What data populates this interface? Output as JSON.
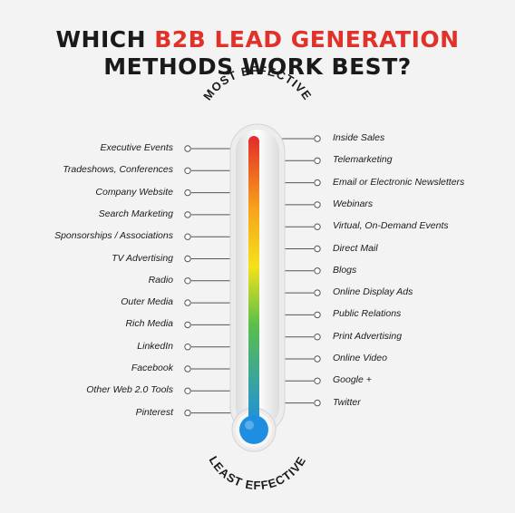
{
  "title": {
    "line1_prefix": "WHICH ",
    "line1_accent": "B2B LEAD GENERATION",
    "line2": "METHODS WORK BEST?"
  },
  "scale": {
    "top_label": "MOST EFFECTIVE",
    "bottom_label": "LEAST EFFECTIVE"
  },
  "left_methods": [
    "Executive Events",
    "Tradeshows, Conferences",
    "Company Website",
    "Search Marketing",
    "Sponsorships / Associations",
    "TV Advertising",
    "Radio",
    "Outer Media",
    "Rich Media",
    "LinkedIn",
    "Facebook",
    "Other Web 2.0 Tools",
    "Pinterest"
  ],
  "right_methods": [
    "Inside Sales",
    "Telemarketing",
    "Email or Electronic Newsletters",
    "Webinars",
    "Virtual, On-Demand Events",
    "Direct Mail",
    "Blogs",
    "Online Display Ads",
    "Public Relations",
    "Print Advertising",
    "Online Video",
    "Google +",
    "Twitter"
  ],
  "colors": {
    "accent": "#e0312a",
    "gradient_top": "#e32b2b",
    "gradient_upper_mid": "#f7a21b",
    "gradient_mid": "#f4e21a",
    "gradient_lower_mid": "#5bbf4a",
    "gradient_bottom": "#1e8fe0"
  }
}
